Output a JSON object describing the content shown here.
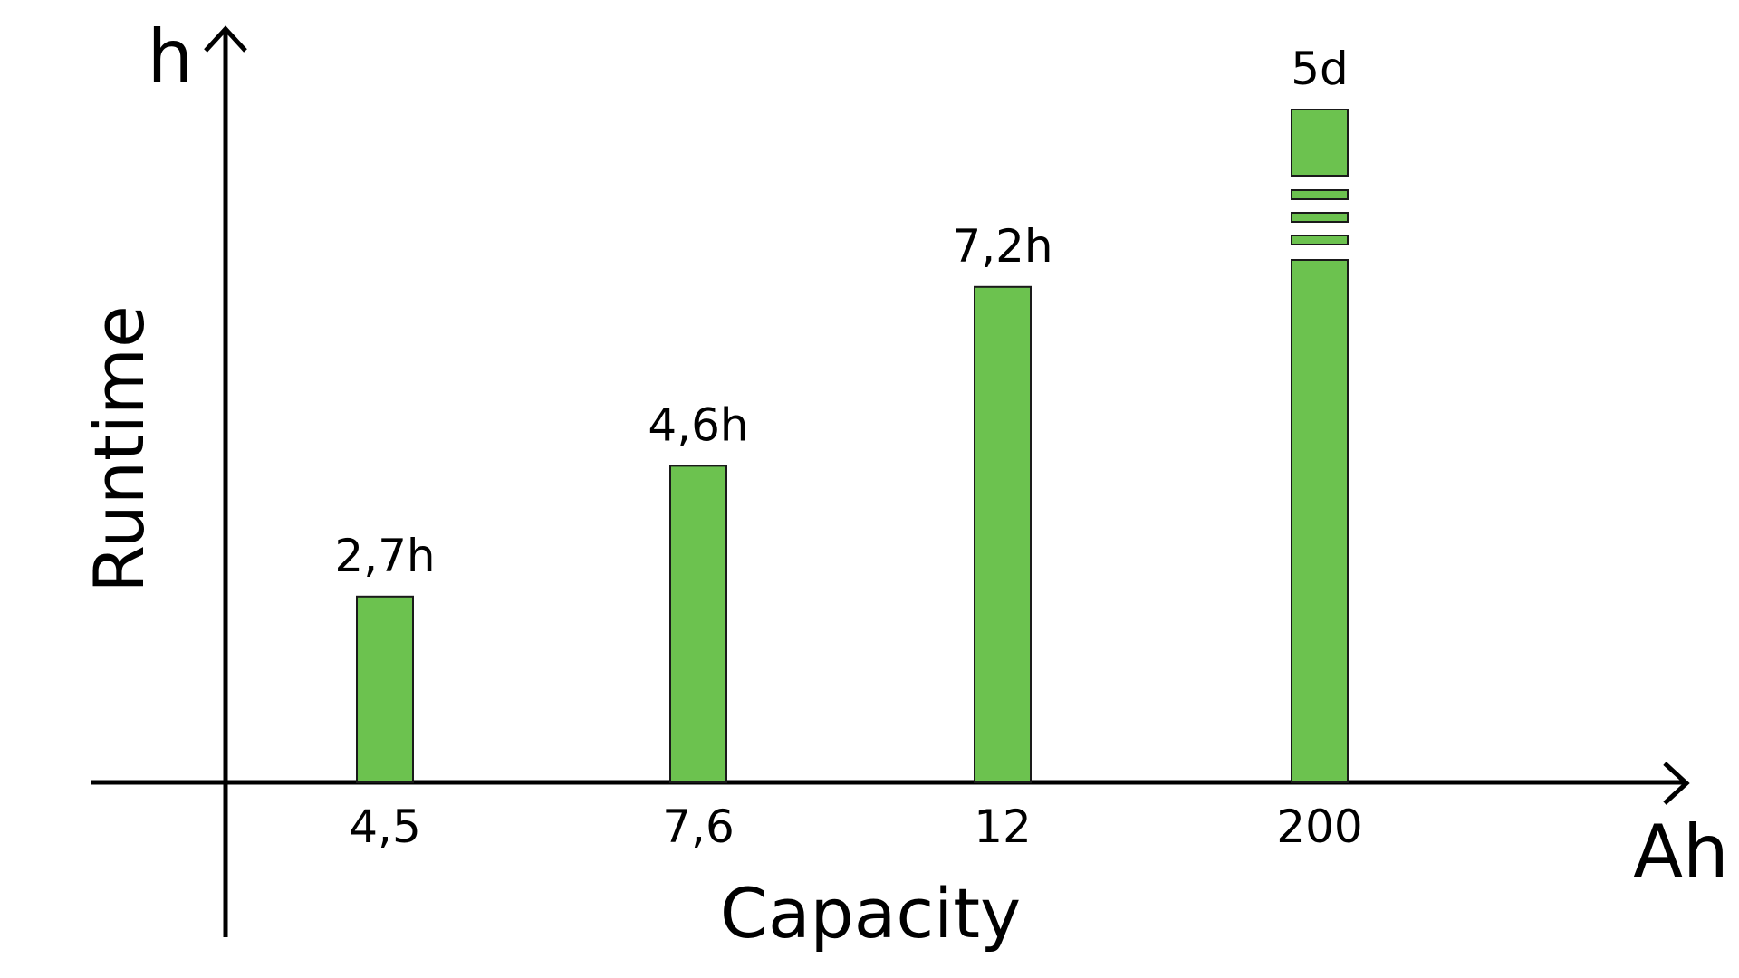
{
  "chart_data": {
    "type": "bar",
    "categories": [
      "4,5",
      "7,6",
      "12",
      "200"
    ],
    "values": [
      2.7,
      4.6,
      7.2,
      120
    ],
    "value_labels": [
      "2,7h",
      "4,6h",
      "7,2h",
      "5d"
    ],
    "broken_bar_index": 3,
    "xlabel": "Capacity",
    "ylabel": "Runtime",
    "x_unit": "Ah",
    "y_unit": "h",
    "bar_color": "#6cc24f",
    "grid": false,
    "legend": "none"
  }
}
